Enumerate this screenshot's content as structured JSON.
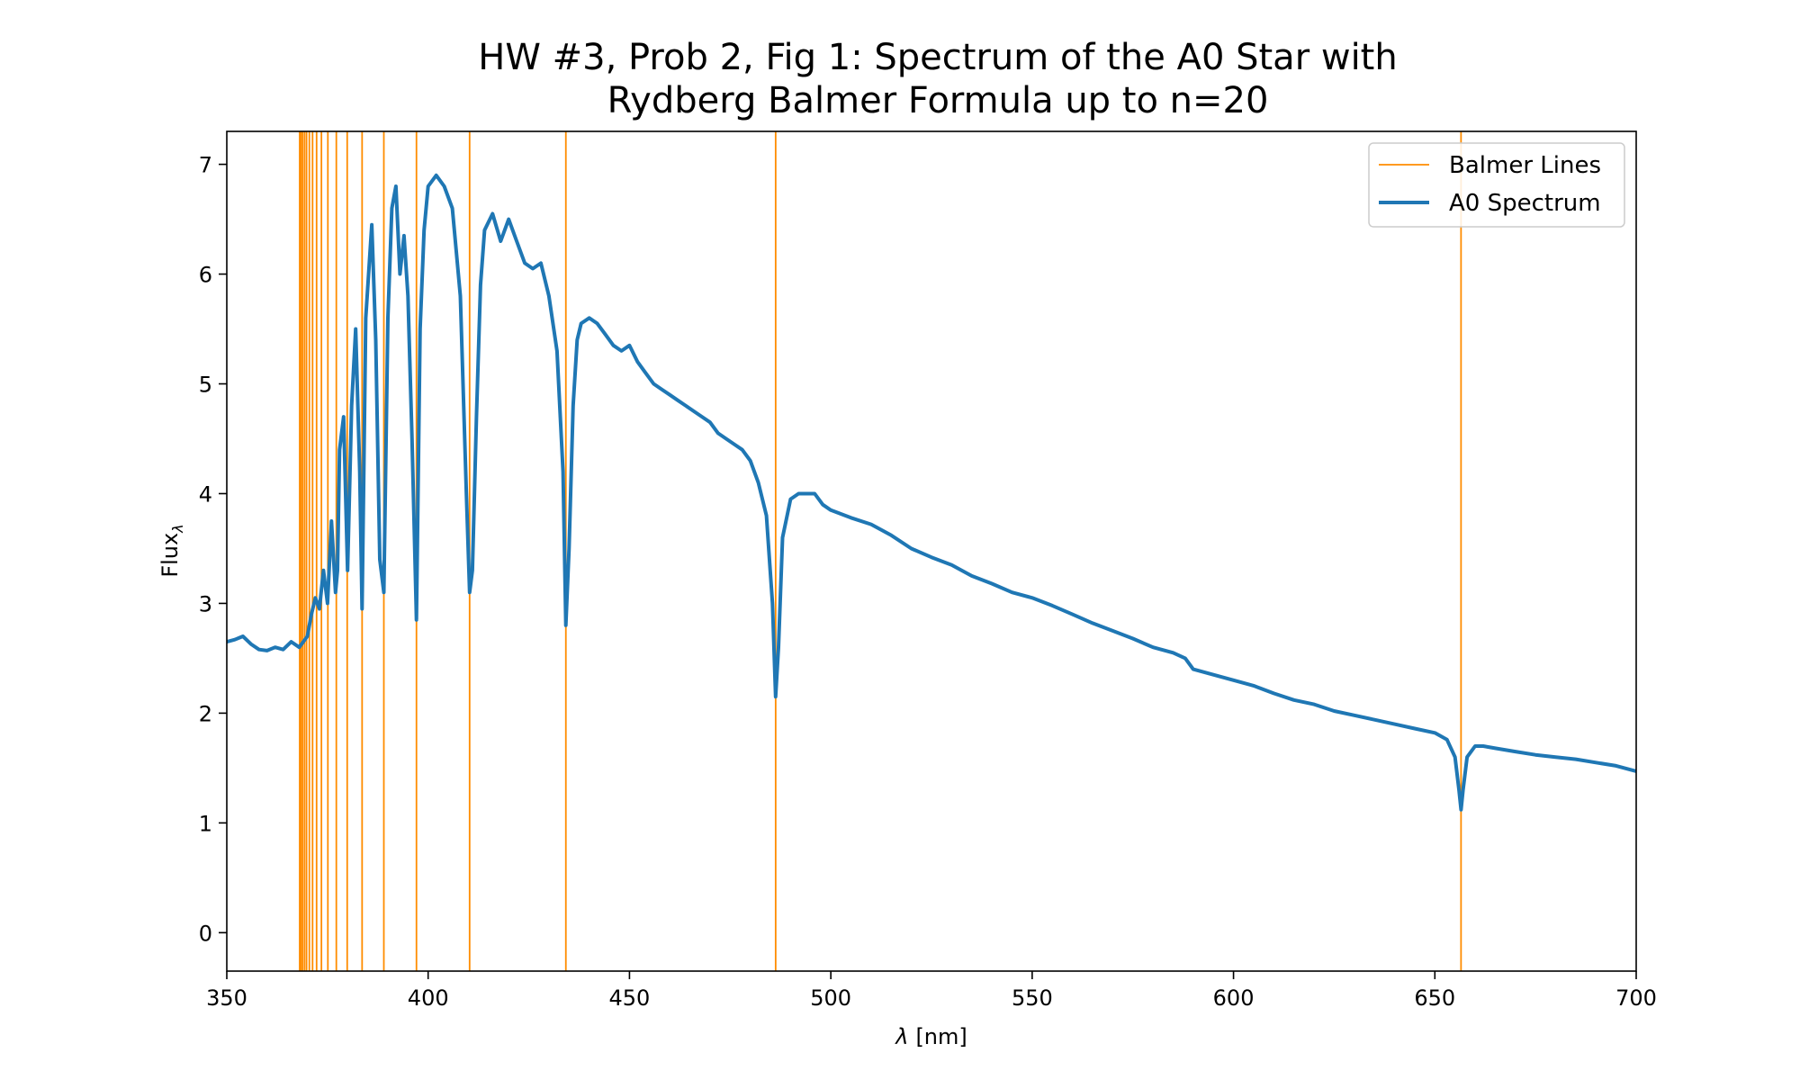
{
  "chart_data": {
    "type": "line",
    "title_line1": "HW #3, Prob 2, Fig 1: Spectrum of the A0 Star with",
    "title_line2": "Rydberg Balmer Formula up to n=20",
    "xlabel_symbol": "λ",
    "xlabel_unit": "[nm]",
    "ylabel_main": "Flux",
    "ylabel_sub": "λ",
    "xlim": [
      350,
      700
    ],
    "ylim": [
      -0.35,
      7.3
    ],
    "xticks": [
      350,
      400,
      450,
      500,
      550,
      600,
      650,
      700
    ],
    "yticks": [
      0,
      1,
      2,
      3,
      4,
      5,
      6,
      7
    ],
    "colors": {
      "spectrum": "#1f77b4",
      "balmer": "#ff8c00"
    },
    "legend": {
      "position": "upper right",
      "entries": [
        "Balmer Lines",
        "A0 Spectrum"
      ]
    },
    "balmer_lines": {
      "name": "Balmer Lines",
      "wavelengths": [
        656.5,
        486.3,
        434.2,
        410.3,
        397.1,
        389.0,
        383.6,
        379.9,
        377.2,
        375.1,
        373.5,
        372.3,
        371.3,
        370.5,
        369.8,
        369.3,
        368.8,
        368.4,
        368.1
      ]
    },
    "series": [
      {
        "name": "A0 Spectrum",
        "x": [
          350,
          352,
          354,
          356,
          358,
          360,
          362,
          364,
          366,
          368,
          370,
          371,
          372,
          373,
          374,
          375,
          376,
          377,
          377.5,
          378,
          379,
          380,
          381,
          382,
          383,
          383.6,
          384.5,
          386,
          387,
          388,
          389,
          390,
          391,
          392,
          393,
          394,
          395,
          396,
          397,
          397.1,
          398,
          399,
          400,
          402,
          404,
          406,
          408,
          409.5,
          410.3,
          411,
          412,
          413,
          414,
          416,
          418,
          420,
          422,
          424,
          426,
          428,
          430,
          432,
          433.5,
          434.2,
          435,
          436,
          437,
          438,
          440,
          442,
          444,
          446,
          448,
          450,
          452,
          454,
          456,
          458,
          460,
          462,
          464,
          466,
          468,
          470,
          472,
          474,
          476,
          478,
          480,
          482,
          484,
          485.5,
          486.3,
          487,
          488,
          490,
          492,
          494,
          496,
          498,
          500,
          505,
          510,
          515,
          520,
          525,
          530,
          535,
          540,
          545,
          550,
          555,
          560,
          565,
          570,
          575,
          580,
          585,
          588,
          590,
          595,
          600,
          605,
          610,
          615,
          620,
          625,
          630,
          635,
          640,
          645,
          650,
          653,
          655,
          656,
          656.5,
          657,
          658,
          660,
          662,
          665,
          670,
          675,
          680,
          685,
          690,
          695,
          700
        ],
        "y": [
          2.65,
          2.67,
          2.7,
          2.63,
          2.58,
          2.57,
          2.6,
          2.58,
          2.65,
          2.6,
          2.7,
          2.9,
          3.05,
          2.95,
          3.3,
          3.0,
          3.75,
          3.1,
          3.3,
          4.4,
          4.7,
          3.3,
          4.8,
          5.5,
          4.2,
          2.95,
          5.6,
          6.45,
          5.4,
          3.4,
          3.1,
          5.6,
          6.6,
          6.8,
          6.0,
          6.35,
          5.8,
          4.5,
          3.0,
          2.85,
          5.5,
          6.4,
          6.8,
          6.9,
          6.8,
          6.6,
          5.8,
          4.0,
          3.1,
          3.3,
          4.7,
          5.9,
          6.4,
          6.55,
          6.3,
          6.5,
          6.3,
          6.1,
          6.05,
          6.1,
          5.8,
          5.3,
          4.2,
          2.8,
          3.5,
          4.8,
          5.4,
          5.55,
          5.6,
          5.55,
          5.45,
          5.35,
          5.3,
          5.35,
          5.2,
          5.1,
          5.0,
          4.95,
          4.9,
          4.85,
          4.8,
          4.75,
          4.7,
          4.65,
          4.55,
          4.5,
          4.45,
          4.4,
          4.3,
          4.1,
          3.8,
          3.0,
          2.15,
          2.6,
          3.6,
          3.95,
          4.0,
          4.0,
          4.0,
          3.9,
          3.85,
          3.78,
          3.72,
          3.62,
          3.5,
          3.42,
          3.35,
          3.25,
          3.18,
          3.1,
          3.05,
          2.98,
          2.9,
          2.82,
          2.75,
          2.68,
          2.6,
          2.55,
          2.5,
          2.4,
          2.35,
          2.3,
          2.25,
          2.18,
          2.12,
          2.08,
          2.02,
          1.98,
          1.94,
          1.9,
          1.86,
          1.82,
          1.76,
          1.6,
          1.3,
          1.12,
          1.3,
          1.6,
          1.7,
          1.7,
          1.68,
          1.65,
          1.62,
          1.6,
          1.58,
          1.55,
          1.52,
          1.47
        ]
      }
    ]
  }
}
